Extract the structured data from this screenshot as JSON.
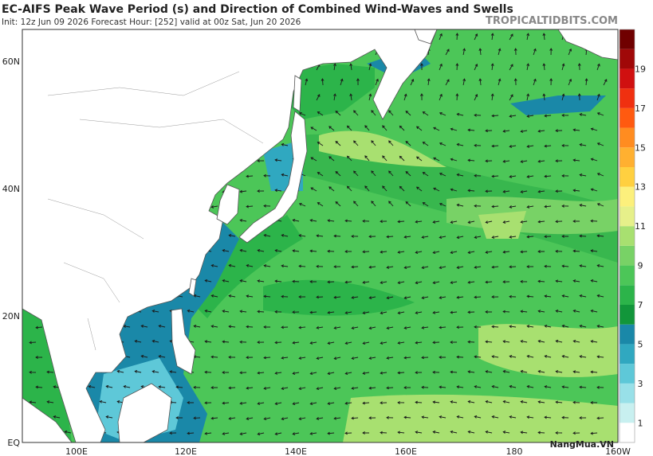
{
  "header": {
    "title": "EC-AIFS Peak Wave Period (s) and Direction of Combined Wind-Waves and Swells",
    "subtitle": "Init: 12z Jun 09 2026   Forecast Hour: [252]   valid at 00z Sat, Jun 20 2026",
    "site": "TROPICALTIDBITS.COM"
  },
  "map": {
    "lat_labels": [
      "60N",
      "40N",
      "20N",
      "EQ"
    ],
    "lon_labels": [
      "100E",
      "120E",
      "140E",
      "160E",
      "180",
      "160W"
    ]
  },
  "colorbar": {
    "range": [
      0,
      21
    ],
    "ticks": [
      1,
      3,
      5,
      7,
      9,
      11,
      13,
      15,
      17,
      19
    ],
    "colors": [
      "#ffffff",
      "#c8f0f0",
      "#98e0e8",
      "#5ec8d8",
      "#30a8c0",
      "#1a88a8",
      "#12963a",
      "#2cb44a",
      "#4cc658",
      "#78d266",
      "#a8e070",
      "#e6f08a",
      "#fcf07c",
      "#ffd040",
      "#ffb030",
      "#ff8c20",
      "#ff5a10",
      "#f03010",
      "#d01010",
      "#a00808",
      "#700000"
    ]
  },
  "watermark": "NangMua.VN"
}
